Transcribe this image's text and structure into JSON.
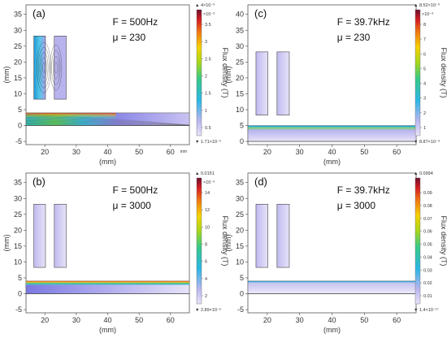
{
  "panels": [
    {
      "id": "a",
      "tag": "(a)",
      "freq_label": "F = 500Hz",
      "mu_label": "μ = 230",
      "y_unit": "(mm)",
      "x_unit": "(mm)",
      "x_ticks": [
        "20",
        "30",
        "40",
        "50",
        "60"
      ],
      "y_ticks": [
        "-5",
        "0",
        "5",
        "10",
        "15",
        "20",
        "25",
        "30",
        "35"
      ],
      "mm_note": "mm",
      "colorbar": {
        "top_label": "▲ 4×10⁻³",
        "exp_label": "×10⁻³",
        "ticks": [
          "3.5",
          "3",
          "2.5",
          "2",
          "1.5",
          "1",
          "0.5"
        ],
        "bottom_label": "▼ 1.71×10⁻⁵",
        "title": "Flux density (T)"
      }
    },
    {
      "id": "c",
      "tag": "(c)",
      "freq_label": "F = 39.7kHz",
      "mu_label": "μ = 230",
      "y_unit": "(mm)",
      "x_unit": "(mm)",
      "x_ticks": [
        "20",
        "30",
        "40",
        "50",
        "60"
      ],
      "y_ticks": [
        "0",
        "5",
        "10",
        "15",
        "20",
        "25",
        "30",
        "35",
        "40"
      ],
      "mm_note": "",
      "colorbar": {
        "top_label": "▲ 8.52×10⁻³",
        "exp_label": "×10⁻³",
        "ticks": [
          "8",
          "7",
          "6",
          "5",
          "4",
          "3",
          "2",
          "1"
        ],
        "bottom_label": "▼ 8.87×10⁻⁹",
        "title": "Flux density (T)"
      }
    },
    {
      "id": "b",
      "tag": "(b)",
      "freq_label": "F = 500Hz",
      "mu_label": "μ = 3000",
      "y_unit": "(mm)",
      "x_unit": "(mm)",
      "x_ticks": [
        "20",
        "30",
        "40",
        "50",
        "60"
      ],
      "y_ticks": [
        "-5",
        "0",
        "5",
        "10",
        "15",
        "20",
        "25",
        "30",
        "35"
      ],
      "mm_note": "",
      "colorbar": {
        "top_label": "▲ 0.0151",
        "exp_label": "×10⁻³",
        "ticks": [
          "14",
          "12",
          "10",
          "8",
          "6",
          "4",
          "2"
        ],
        "bottom_label": "▼ 2.89×10⁻⁶",
        "title": "Flux density (T)"
      }
    },
    {
      "id": "d",
      "tag": "(d)",
      "freq_label": "F = 39.7kHz",
      "mu_label": "μ = 3000",
      "y_unit": "(mm)",
      "x_unit": "(mm)",
      "x_ticks": [
        "20",
        "30",
        "40",
        "50",
        "60"
      ],
      "y_ticks": [
        "-5",
        "0",
        "5",
        "10",
        "15",
        "20",
        "25",
        "30",
        "35"
      ],
      "mm_note": "",
      "colorbar": {
        "top_label": "▲ 0.0994",
        "exp_label": "",
        "ticks": [
          "0.09",
          "0.08",
          "0.07",
          "0.06",
          "0.05",
          "0.04",
          "0.03",
          "0.02",
          "0.01"
        ],
        "bottom_label": "▼ 1.4×10⁻¹⁷",
        "title": "Flux density (T)"
      }
    }
  ]
}
